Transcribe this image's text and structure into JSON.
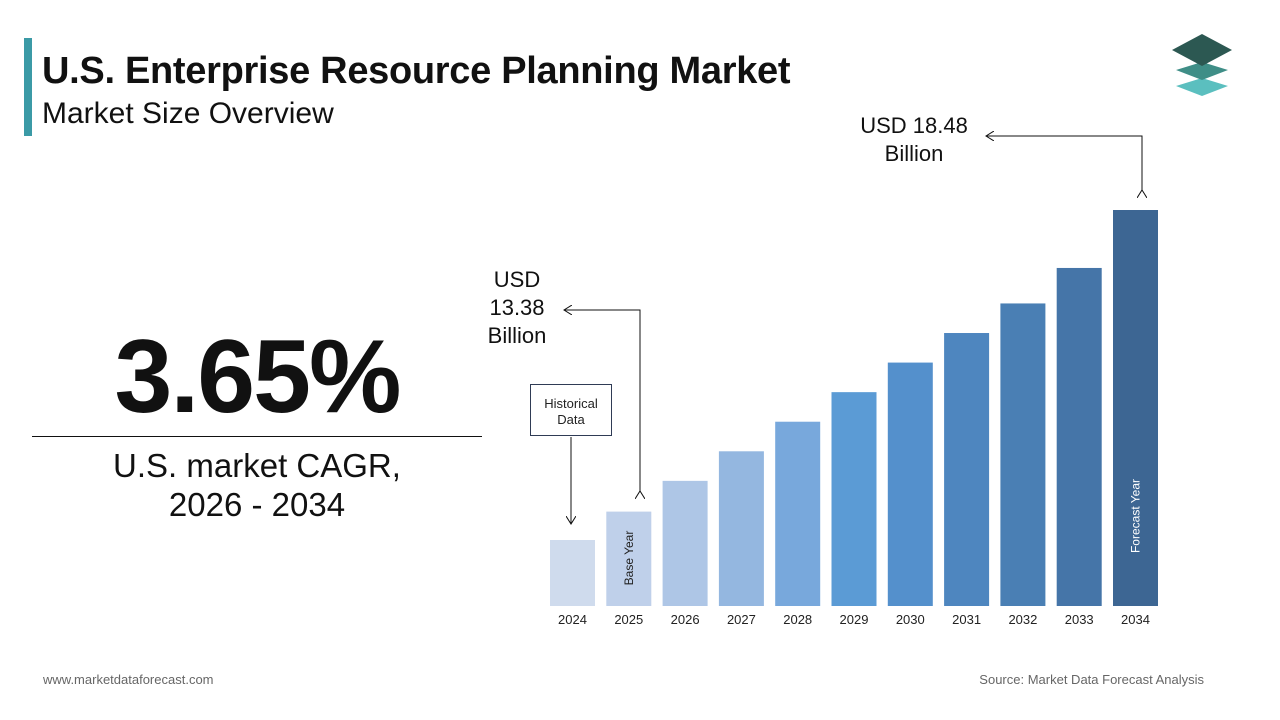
{
  "header": {
    "title": "U.S. Enterprise Resource Planning Market",
    "subtitle": "Market Size Overview"
  },
  "kpi": {
    "value": "3.65%",
    "label_line1": "U.S. market CAGR,",
    "label_line2": "2026 - 2034"
  },
  "callouts": {
    "start_line1": "USD",
    "start_line2": "13.38",
    "start_line3": "Billion",
    "end_line1": "USD 18.48",
    "end_line2": "Billion",
    "historical_line1": "Historical",
    "historical_line2": "Data"
  },
  "footer": {
    "website": "www.marketdataforecast.com",
    "source": "Source: Market Data Forecast Analysis"
  },
  "chart_data": {
    "type": "bar",
    "categories": [
      "2024",
      "2025",
      "2026",
      "2027",
      "2028",
      "2029",
      "2030",
      "2031",
      "2032",
      "2033",
      "2034"
    ],
    "values": [
      12.9,
      13.38,
      13.9,
      14.4,
      14.9,
      15.4,
      15.9,
      16.4,
      16.9,
      17.5,
      18.48
    ],
    "bar_labels": {
      "2025": "Base Year",
      "2034": "Forecast Year"
    },
    "colors": [
      "#cfdbed",
      "#bfd0ea",
      "#aec6e6",
      "#94b7e0",
      "#78a8dc",
      "#5b9bd5",
      "#5490cc",
      "#4e86bf",
      "#4a7fb4",
      "#4575a8",
      "#3d6693"
    ]
  }
}
